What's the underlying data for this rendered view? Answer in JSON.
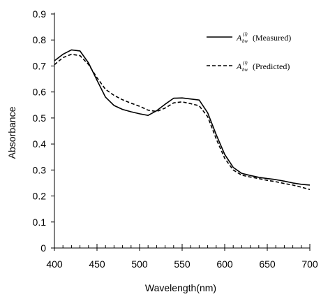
{
  "chart_data": {
    "type": "line",
    "xlabel": "Wavelength(nm)",
    "ylabel": "Absorbance",
    "xlim": [
      400,
      700
    ],
    "ylim": [
      0,
      0.9
    ],
    "x_ticks": [
      400,
      450,
      500,
      550,
      600,
      650,
      700
    ],
    "x_tick_labels": [
      "400",
      "450",
      "500",
      "550",
      "600",
      "650",
      "700"
    ],
    "y_ticks": [
      0,
      0.1,
      0.2,
      0.3,
      0.4,
      0.5,
      0.6,
      0.7,
      0.8,
      0.9
    ],
    "y_tick_labels": [
      "0",
      "0.1",
      "0.2",
      "0.3",
      "0.4",
      "0.5",
      "0.6",
      "0.7",
      "0.8",
      "0.9"
    ],
    "x_minor_tick_step": 10,
    "grid": false,
    "legend_position": "top-right",
    "series": [
      {
        "name": "(Measured)",
        "legend_symbol": "A",
        "legend_superscript": "(i)",
        "legend_subscript": "bw",
        "line_style": "solid",
        "color": "#000000",
        "x": [
          400,
          410,
          420,
          430,
          440,
          450,
          460,
          470,
          480,
          490,
          500,
          510,
          520,
          530,
          540,
          550,
          560,
          570,
          580,
          590,
          600,
          610,
          620,
          630,
          640,
          650,
          660,
          670,
          680,
          690,
          700
        ],
        "y": [
          0.72,
          0.745,
          0.762,
          0.758,
          0.712,
          0.645,
          0.58,
          0.548,
          0.533,
          0.524,
          0.516,
          0.51,
          0.528,
          0.553,
          0.576,
          0.577,
          0.573,
          0.569,
          0.52,
          0.436,
          0.36,
          0.31,
          0.287,
          0.279,
          0.272,
          0.267,
          0.263,
          0.257,
          0.25,
          0.245,
          0.242
        ]
      },
      {
        "name": "(Predicted)",
        "legend_symbol": "A",
        "legend_superscript": "(i)",
        "legend_subscript": "bw",
        "line_style": "dashed",
        "color": "#000000",
        "x": [
          400,
          410,
          420,
          430,
          440,
          450,
          460,
          470,
          480,
          490,
          500,
          510,
          520,
          530,
          540,
          550,
          560,
          570,
          580,
          590,
          600,
          610,
          620,
          630,
          640,
          650,
          660,
          670,
          680,
          690,
          700
        ],
        "y": [
          0.705,
          0.732,
          0.745,
          0.74,
          0.706,
          0.655,
          0.61,
          0.587,
          0.57,
          0.557,
          0.545,
          0.53,
          0.525,
          0.538,
          0.558,
          0.562,
          0.555,
          0.547,
          0.505,
          0.42,
          0.345,
          0.3,
          0.28,
          0.273,
          0.267,
          0.26,
          0.255,
          0.248,
          0.242,
          0.234,
          0.225
        ]
      }
    ]
  }
}
